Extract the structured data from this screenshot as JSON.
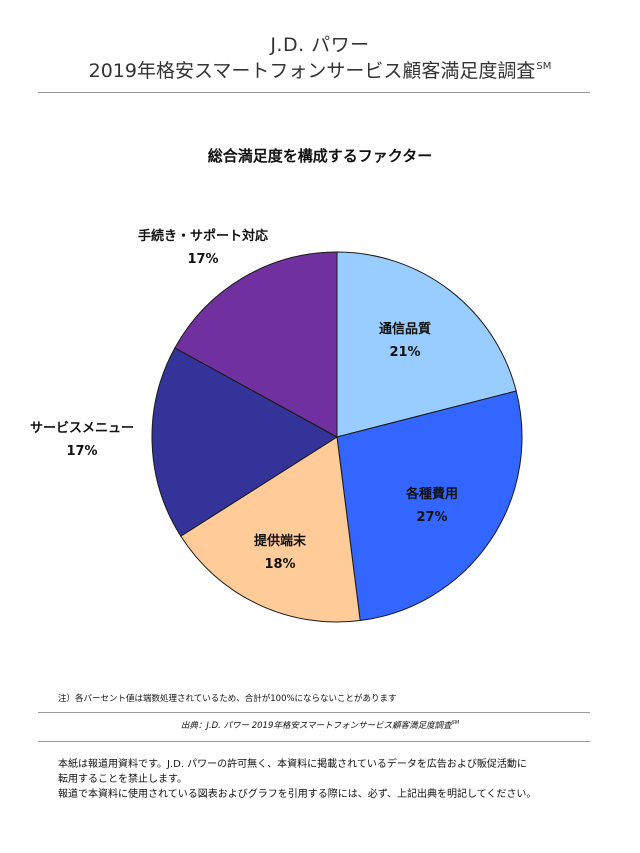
{
  "header": {
    "line1": "J.D. パワー",
    "line2": "2019年格安スマートフォンサービス顧客満足度調査",
    "line2_mark": "SM"
  },
  "chart_data": {
    "type": "pie",
    "title": "総合満足度を構成するファクター",
    "unit": "%",
    "start_angle_deg": 0,
    "direction": "clockwise",
    "slices": [
      {
        "label": "通信品質",
        "value": 21,
        "color": "#99ccff"
      },
      {
        "label": "各種費用",
        "value": 27,
        "color": "#3366ff"
      },
      {
        "label": "提供端末",
        "value": 18,
        "color": "#ffcc99"
      },
      {
        "label": "サービスメニュー",
        "value": 17,
        "color": "#333399"
      },
      {
        "label": "手続き・サポート対応",
        "value": 17,
        "color": "#7030a0"
      }
    ]
  },
  "note": "注）各パーセント値は端数処理されているため、合計が100%にならないことがあります",
  "source": {
    "text": "出典：J.D. パワー 2019年格安スマートフォンサービス顧客満足度調査",
    "mark": "SM"
  },
  "disclaimer": {
    "line1": "本紙は報道用資料です。J.D. パワーの許可無く、本資料に掲載されているデータを広告および販促活動に",
    "line2": "転用することを禁止します。",
    "line3": "報道で本資料に使用されている図表およびグラフを引用する際には、必ず、上記出典を明記してください。"
  }
}
